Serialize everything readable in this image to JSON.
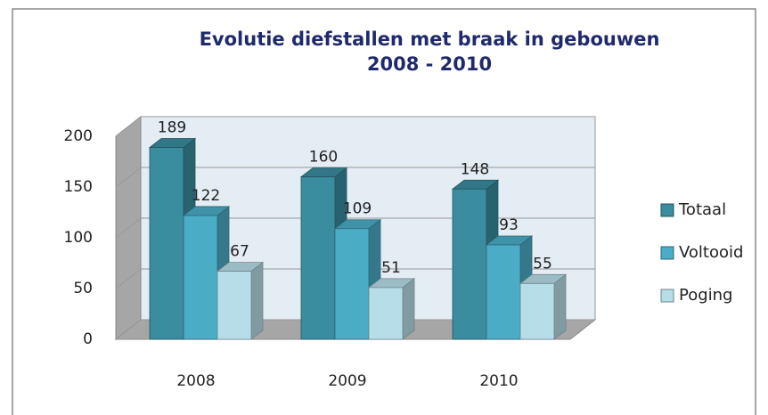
{
  "chart_data": {
    "type": "bar",
    "title": "Evolutie diefstallen met braak in gebouwen",
    "subtitle": "2008 - 2010",
    "categories": [
      "2008",
      "2009",
      "2010"
    ],
    "series": [
      {
        "name": "Totaal",
        "color": "#3a8c9f",
        "values": [
          189,
          160,
          148
        ]
      },
      {
        "name": "Voltooid",
        "color": "#4bacc6",
        "values": [
          122,
          109,
          93
        ]
      },
      {
        "name": "Poging",
        "color": "#b7dde8",
        "values": [
          67,
          51,
          55
        ]
      }
    ],
    "ylim": [
      0,
      200
    ],
    "yticks": [
      0,
      50,
      100,
      150,
      200
    ],
    "grid": true
  }
}
